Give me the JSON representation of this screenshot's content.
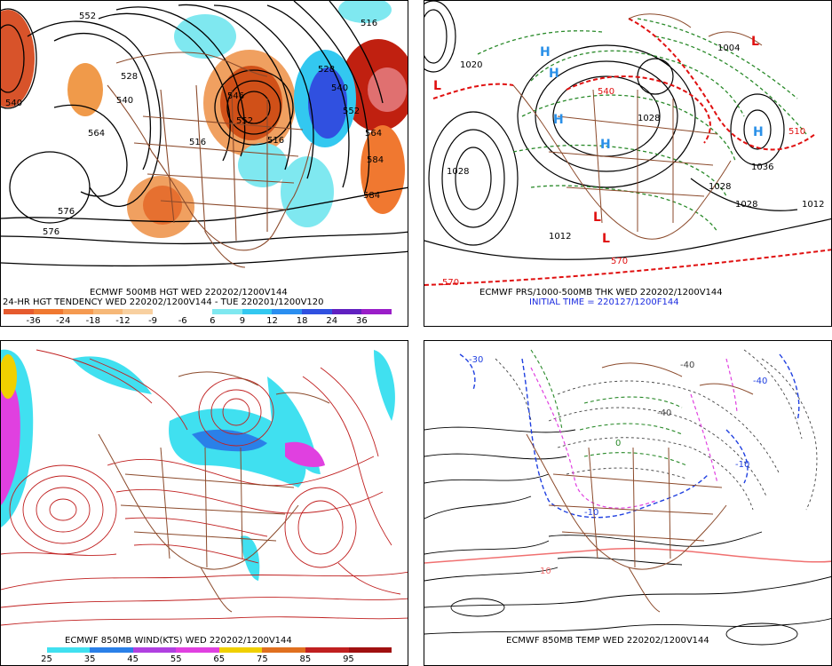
{
  "panels": {
    "hgt500": {
      "title_line1": "ECMWF 500MB HGT WED 220202/1200V144",
      "title_line2": "24-HR HGT TENDENCY WED 220202/1200V144 - TUE 220201/1200V120",
      "colorbar": {
        "colors": [
          "#e65a2e",
          "#f07830",
          "#f59a50",
          "#f6b878",
          "#f8d0a0",
          "#ffffff",
          "#ffffff",
          "#7fe8f0",
          "#33c8f0",
          "#2a8ef0",
          "#3050e0",
          "#6020c0",
          "#9a1ec8"
        ],
        "ticks": [
          "-36",
          "-24",
          "-18",
          "-12",
          "-9",
          "-6",
          "6",
          "9",
          "12",
          "18",
          "24",
          "36"
        ]
      },
      "contour_labels": [
        "552",
        "516",
        "528",
        "540",
        "546",
        "516",
        "564",
        "528",
        "540",
        "552",
        "564",
        "576",
        "576",
        "584",
        "584",
        "540",
        "552",
        "516"
      ]
    },
    "prs_thk": {
      "title_line1": "ECMWF PRS/1000-500MB THK WED 220202/1200V144",
      "title_line2": "INITIAL TIME = 220127/1200F144",
      "contour_labels": [
        "1028",
        "1028",
        "1020",
        "1012",
        "1036",
        "1028",
        "1012",
        "1028",
        "1004",
        "570",
        "540",
        "510",
        "570"
      ],
      "symbols": [
        "H",
        "H",
        "H",
        "H",
        "H",
        "L",
        "L",
        "L",
        "L"
      ]
    },
    "wind850": {
      "title_line1": "ECMWF 850MB WIND(KTS) WED 220202/1200V144",
      "colorbar": {
        "colors": [
          "#ffffff",
          "#40e0f0",
          "#2a80e8",
          "#b040e0",
          "#e040e0",
          "#f0d000",
          "#e07020",
          "#c02020",
          "#a01010"
        ],
        "ticks": [
          "25",
          "35",
          "45",
          "55",
          "65",
          "75",
          "85",
          "95"
        ]
      }
    },
    "temp850": {
      "title_line1": "ECMWF 850MB TEMP WED 220202/1200V144",
      "contour_labels": [
        "-30",
        "-40",
        "-40",
        "-10",
        "-40",
        "-10",
        "0",
        "10"
      ]
    }
  }
}
